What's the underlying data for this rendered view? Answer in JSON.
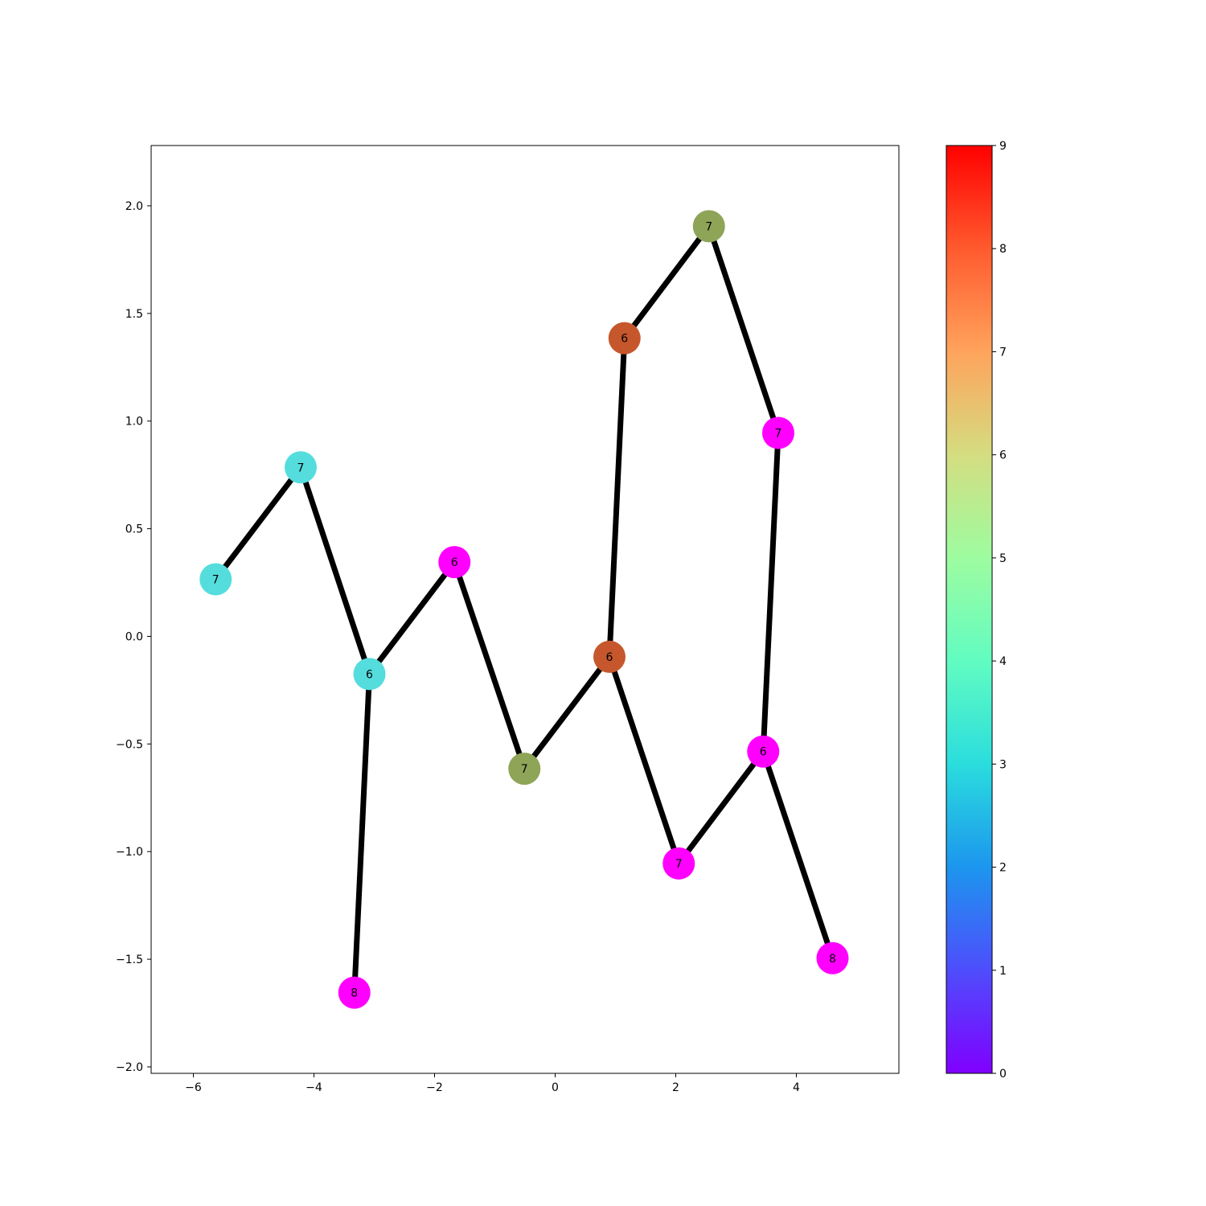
{
  "chart_data": {
    "type": "scatter",
    "title": "",
    "xlabel": "",
    "ylabel": "",
    "xlim": [
      -6.7,
      5.7
    ],
    "ylim": [
      -2.03,
      2.28
    ],
    "x_ticks": [
      -6,
      -4,
      -2,
      0,
      2,
      4
    ],
    "y_ticks": [
      -2.0,
      -1.5,
      -1.0,
      -0.5,
      0.0,
      0.5,
      1.0,
      1.5,
      2.0
    ],
    "grid": false,
    "nodes": [
      {
        "id": "n0",
        "x": -5.63,
        "y": 0.265,
        "label": "7",
        "color_value": 3
      },
      {
        "id": "n1",
        "x": -4.22,
        "y": 0.785,
        "label": "7",
        "color_value": 3
      },
      {
        "id": "n2",
        "x": -3.08,
        "y": -0.175,
        "label": "6",
        "color_value": 3
      },
      {
        "id": "n3",
        "x": -1.67,
        "y": 0.345,
        "label": "6",
        "color_value": 0
      },
      {
        "id": "n4",
        "x": -3.33,
        "y": -1.655,
        "label": "8",
        "color_value": 0
      },
      {
        "id": "n5",
        "x": -0.51,
        "y": -0.615,
        "label": "7",
        "color_value": 7
      },
      {
        "id": "n6",
        "x": 0.9,
        "y": -0.095,
        "label": "6",
        "color_value": 8
      },
      {
        "id": "n7",
        "x": 1.15,
        "y": 1.385,
        "label": "6",
        "color_value": 8
      },
      {
        "id": "n8",
        "x": 2.55,
        "y": 1.905,
        "label": "7",
        "color_value": 7
      },
      {
        "id": "n9",
        "x": 3.7,
        "y": 0.945,
        "label": "7",
        "color_value": 0
      },
      {
        "id": "n10",
        "x": 2.05,
        "y": -1.055,
        "label": "7",
        "color_value": 0
      },
      {
        "id": "n11",
        "x": 3.45,
        "y": -0.535,
        "label": "6",
        "color_value": 0
      },
      {
        "id": "n12",
        "x": 4.6,
        "y": -1.495,
        "label": "8",
        "color_value": 0
      }
    ],
    "edges": [
      [
        "n0",
        "n1"
      ],
      [
        "n1",
        "n2"
      ],
      [
        "n2",
        "n3"
      ],
      [
        "n2",
        "n4"
      ],
      [
        "n3",
        "n5"
      ],
      [
        "n5",
        "n6"
      ],
      [
        "n6",
        "n7"
      ],
      [
        "n7",
        "n8"
      ],
      [
        "n8",
        "n9"
      ],
      [
        "n6",
        "n10"
      ],
      [
        "n10",
        "n11"
      ],
      [
        "n11",
        "n9"
      ],
      [
        "n11",
        "n12"
      ]
    ],
    "colorbar": {
      "colormap": "rainbow",
      "range": [
        0,
        9
      ],
      "ticks": [
        "0",
        "1",
        "2",
        "3",
        "4",
        "5",
        "6",
        "7",
        "8",
        "9"
      ]
    }
  }
}
